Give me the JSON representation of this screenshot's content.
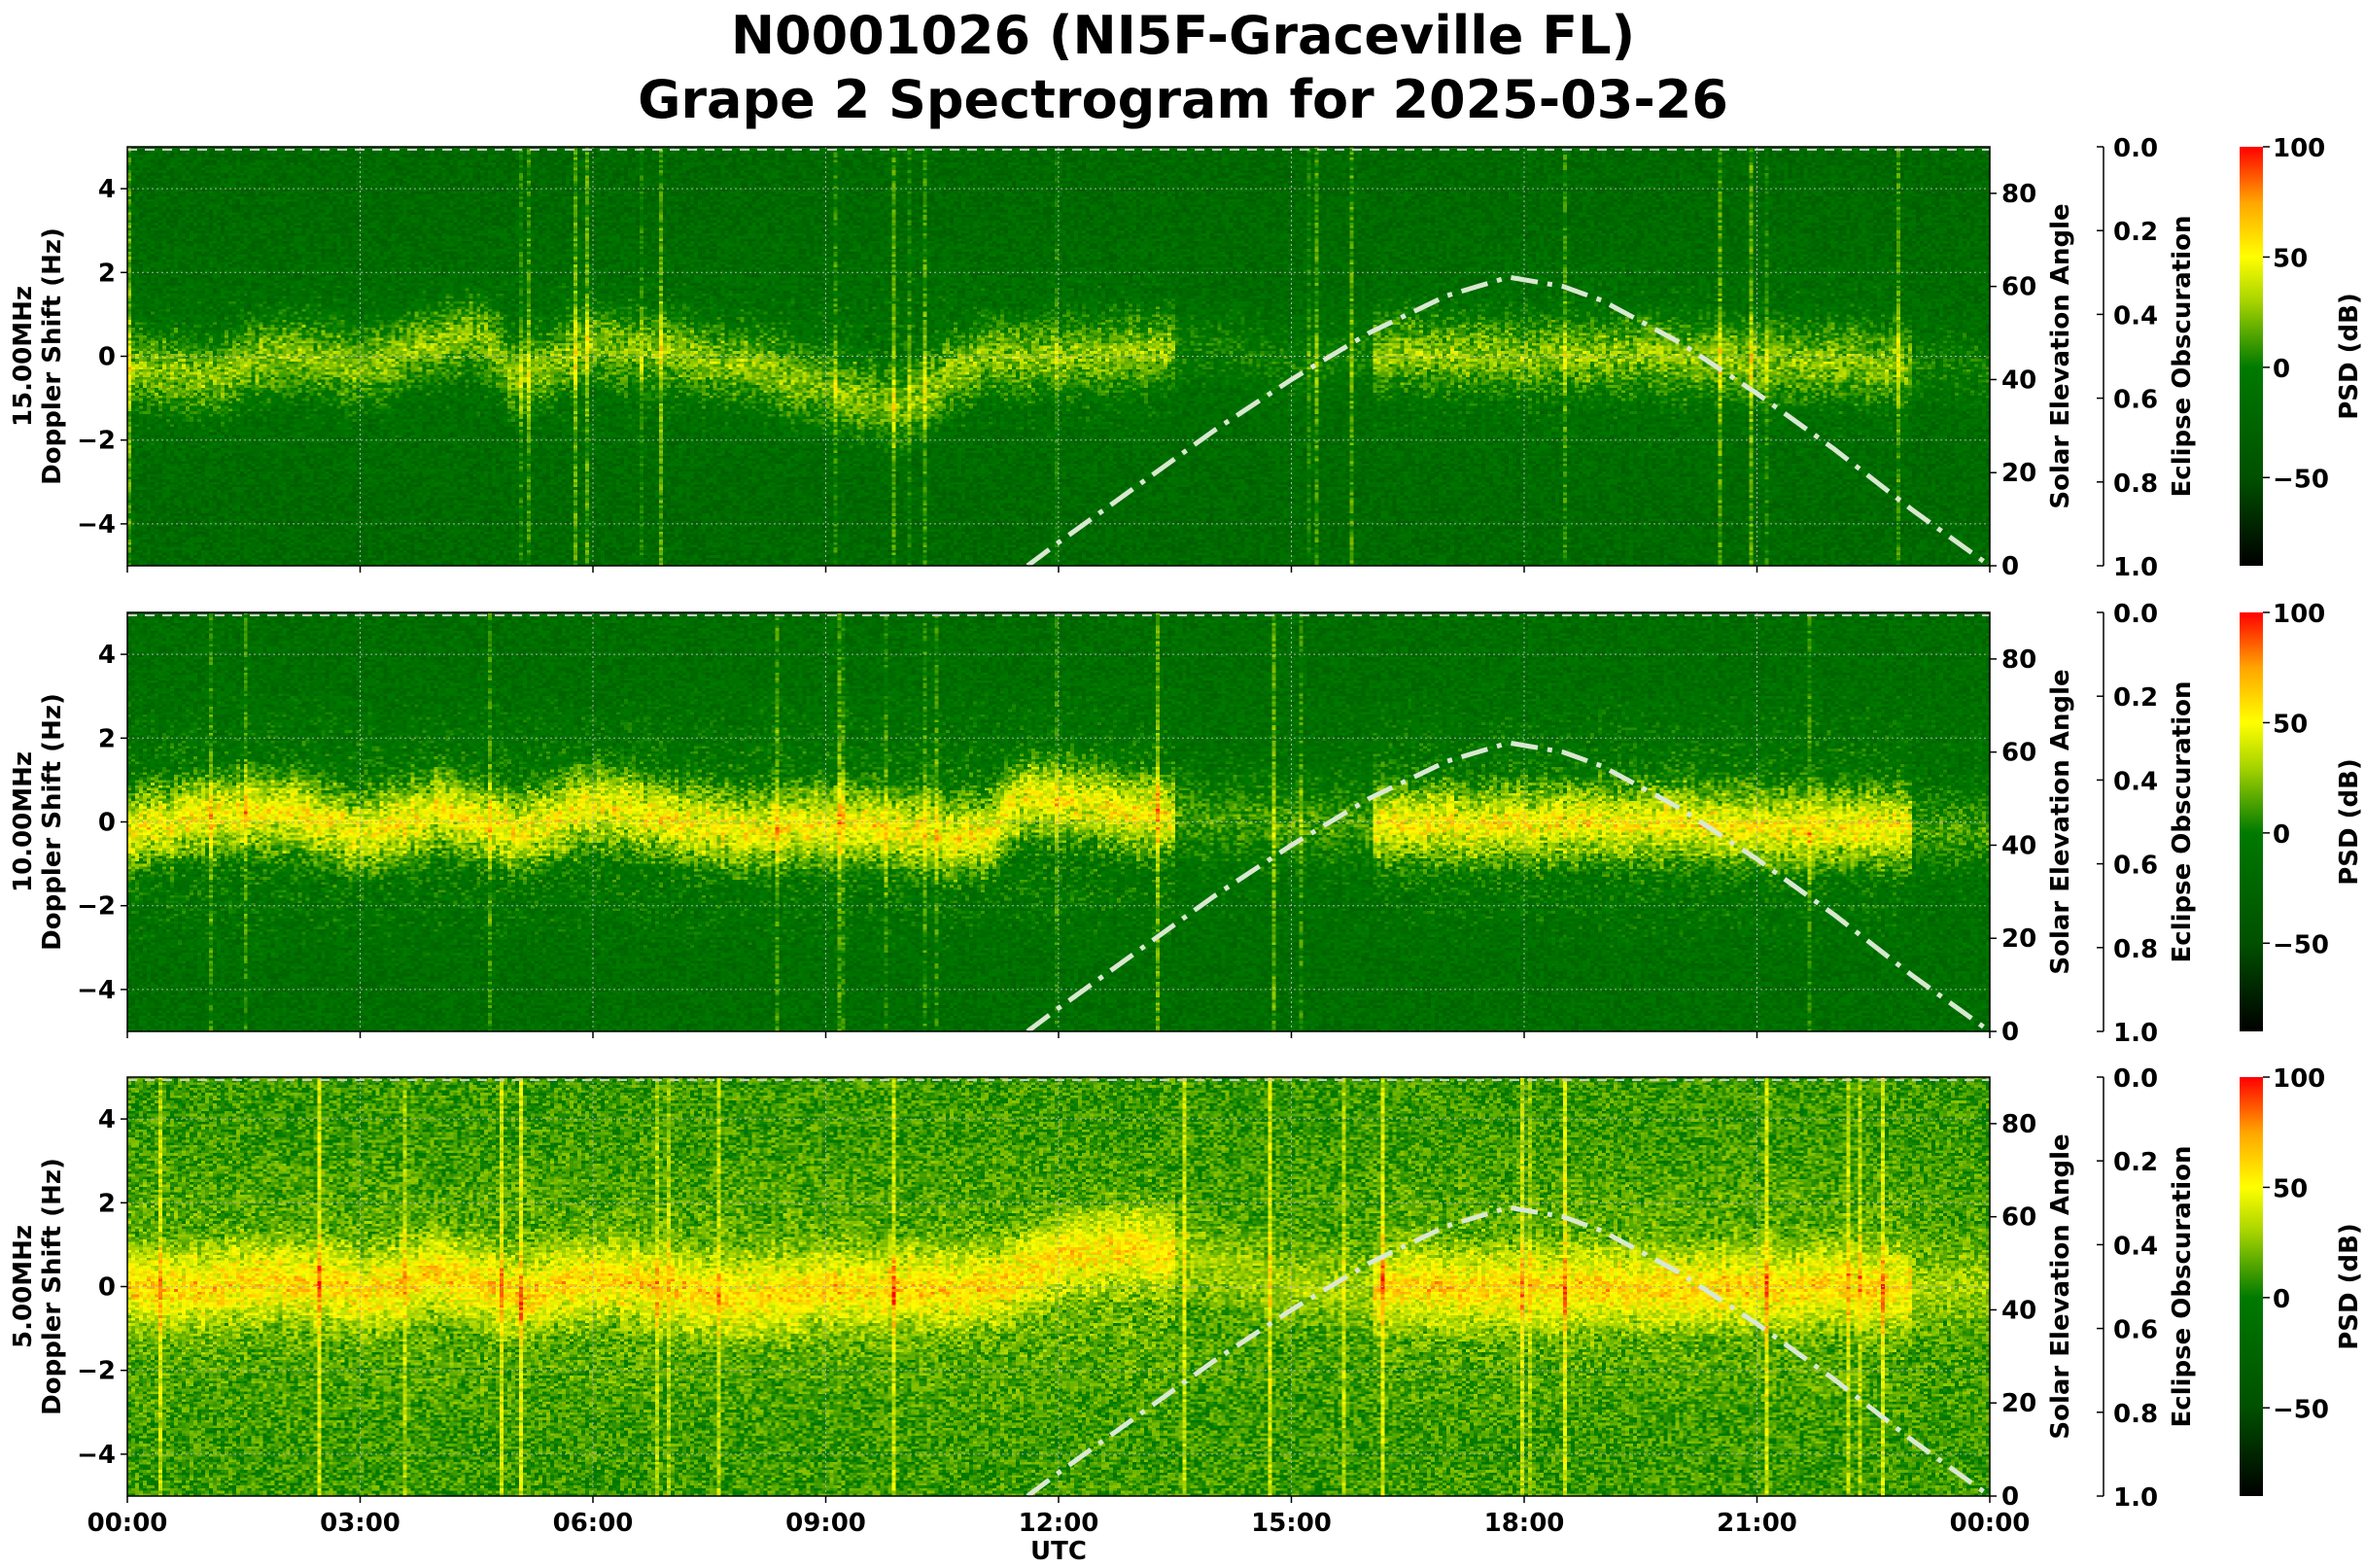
{
  "chart_data": {
    "type": "heatmap",
    "title_line1": "N0001026 (NI5F-Graceville FL)",
    "title_line2": "Grape 2 Spectrogram for 2025-03-26",
    "xlabel": "UTC",
    "x_ticks": [
      "00:00",
      "03:00",
      "06:00",
      "09:00",
      "12:00",
      "15:00",
      "18:00",
      "21:00",
      "00:00"
    ],
    "xlim_hours": [
      0,
      24
    ],
    "ylabel": "Doppler Shift (Hz)",
    "ylim": [
      -5,
      5
    ],
    "y_ticks": [
      "4",
      "2",
      "0",
      "−2",
      "−4"
    ],
    "y_tick_values": [
      4,
      2,
      0,
      -2,
      -4
    ],
    "right_axis_label": "Solar Elevation Angle",
    "right_ylim": [
      0,
      90
    ],
    "right_ticks": [
      "80",
      "60",
      "40",
      "20",
      "0"
    ],
    "right_tick_values": [
      80,
      60,
      40,
      20,
      0
    ],
    "eclipse_label": "Eclipse Obscuration",
    "eclipse_ylim": [
      0,
      1
    ],
    "eclipse_ticks": [
      "0.0",
      "0.2",
      "0.4",
      "0.6",
      "0.8",
      "1.0"
    ],
    "colorbar_label": "PSD (dB)",
    "colorbar_range": [
      -90,
      100
    ],
    "colorbar_ticks": [
      "100",
      "50",
      "0",
      "−50"
    ],
    "colorbar_tick_values": [
      100,
      50,
      0,
      -50
    ],
    "colormap": [
      "#000000",
      "#005000",
      "#007a00",
      "#a8d400",
      "#ffff00",
      "#ffa500",
      "#ff0000"
    ],
    "grid": true,
    "solar_elevation": {
      "hours": [
        11.6,
        12,
        13,
        14,
        15,
        16,
        17,
        17.8,
        18.5,
        19,
        20,
        21,
        22,
        23,
        24
      ],
      "degrees": [
        0,
        5,
        17,
        29,
        40,
        50,
        58,
        62,
        60,
        57,
        48,
        37,
        25,
        12,
        0
      ],
      "style": "dash-dot",
      "color": "#d9e8d0"
    },
    "panels": [
      {
        "label": "15.00MHz",
        "background_db": -20,
        "activity": 0.55,
        "trace_hours": [
          0,
          1,
          2,
          3,
          4,
          4.5,
          5,
          6,
          7,
          8,
          9,
          10,
          11,
          12,
          14,
          15,
          16,
          17,
          18,
          19,
          20,
          21,
          22,
          23,
          24
        ],
        "trace_hz": [
          -0.2,
          -0.5,
          0.2,
          -0.3,
          0.4,
          0.6,
          -0.5,
          0.3,
          0.1,
          -0.2,
          -0.8,
          -1.2,
          0,
          0,
          0.3,
          -0.2,
          0.1,
          0.1,
          0,
          0.1,
          0,
          -0.1,
          -0.1,
          -0.2,
          -0.3
        ]
      },
      {
        "label": "10.00MHz",
        "background_db": -15,
        "activity": 0.8,
        "trace_hours": [
          0,
          1,
          2,
          3,
          4,
          5,
          6,
          7,
          8,
          9,
          10,
          11,
          11.5,
          12,
          13,
          14,
          15,
          16,
          17,
          18,
          19,
          20,
          21,
          22,
          23,
          24
        ],
        "trace_hz": [
          -0.2,
          0.2,
          0.3,
          -0.3,
          0.3,
          -0.2,
          0.5,
          0,
          -0.2,
          0,
          -0.2,
          -0.4,
          0.6,
          0.6,
          0.3,
          0.1,
          0,
          0,
          0,
          0,
          0,
          0,
          -0.1,
          -0.1,
          -0.1,
          -0.2
        ]
      },
      {
        "label": "5.00MHz",
        "background_db": 10,
        "activity": 0.6,
        "trace_hours": [
          0,
          1,
          2,
          3,
          4,
          5,
          6,
          7,
          8,
          9,
          10,
          11,
          11.5,
          12,
          12.5,
          13,
          15,
          18,
          21,
          24
        ],
        "trace_hz": [
          0,
          0,
          0.2,
          -0.1,
          0.4,
          -0.2,
          0.2,
          0,
          -0.3,
          0,
          0,
          0,
          0.3,
          0.8,
          0.9,
          1.1,
          0,
          0,
          0,
          0
        ]
      }
    ]
  }
}
